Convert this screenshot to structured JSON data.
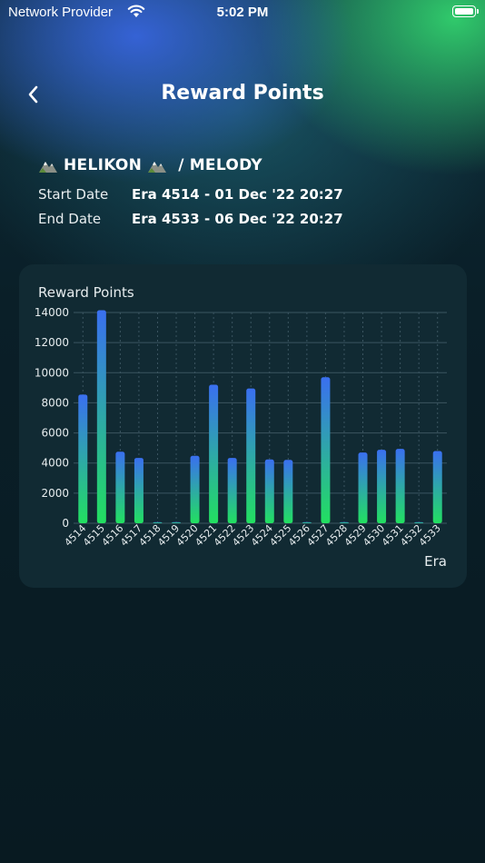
{
  "status_bar": {
    "carrier": "Network Provider",
    "time": "5:02 PM"
  },
  "header": {
    "title": "Reward Points"
  },
  "validator": {
    "name": "HELIKON",
    "separator": "/",
    "nominator": "MELODY"
  },
  "info": {
    "start_label": "Start Date",
    "start_value": "Era 4514 - 01 Dec '22 20:27",
    "end_label": "End Date",
    "end_value": "Era 4533 - 06 Dec '22 20:27"
  },
  "colors": {
    "bar_top": "#3a6ff0",
    "bar_bottom": "#22e060",
    "card": "#112a33"
  },
  "chart_data": {
    "type": "bar",
    "title": "Reward Points",
    "xlabel": "Era",
    "ylabel": "",
    "ylim": [
      0,
      14000
    ],
    "yticks": [
      0,
      2000,
      4000,
      6000,
      8000,
      10000,
      12000,
      14000
    ],
    "categories": [
      "4514",
      "4515",
      "4516",
      "4517",
      "4518",
      "4519",
      "4520",
      "4521",
      "4522",
      "4523",
      "4524",
      "4525",
      "4526",
      "4527",
      "4528",
      "4529",
      "4530",
      "4531",
      "4532",
      "4533"
    ],
    "values": [
      8550,
      14150,
      4750,
      4340,
      50,
      60,
      4480,
      9200,
      4340,
      8950,
      4240,
      4210,
      20,
      9700,
      0,
      4700,
      4880,
      4940,
      50,
      4800
    ],
    "grid": true
  }
}
